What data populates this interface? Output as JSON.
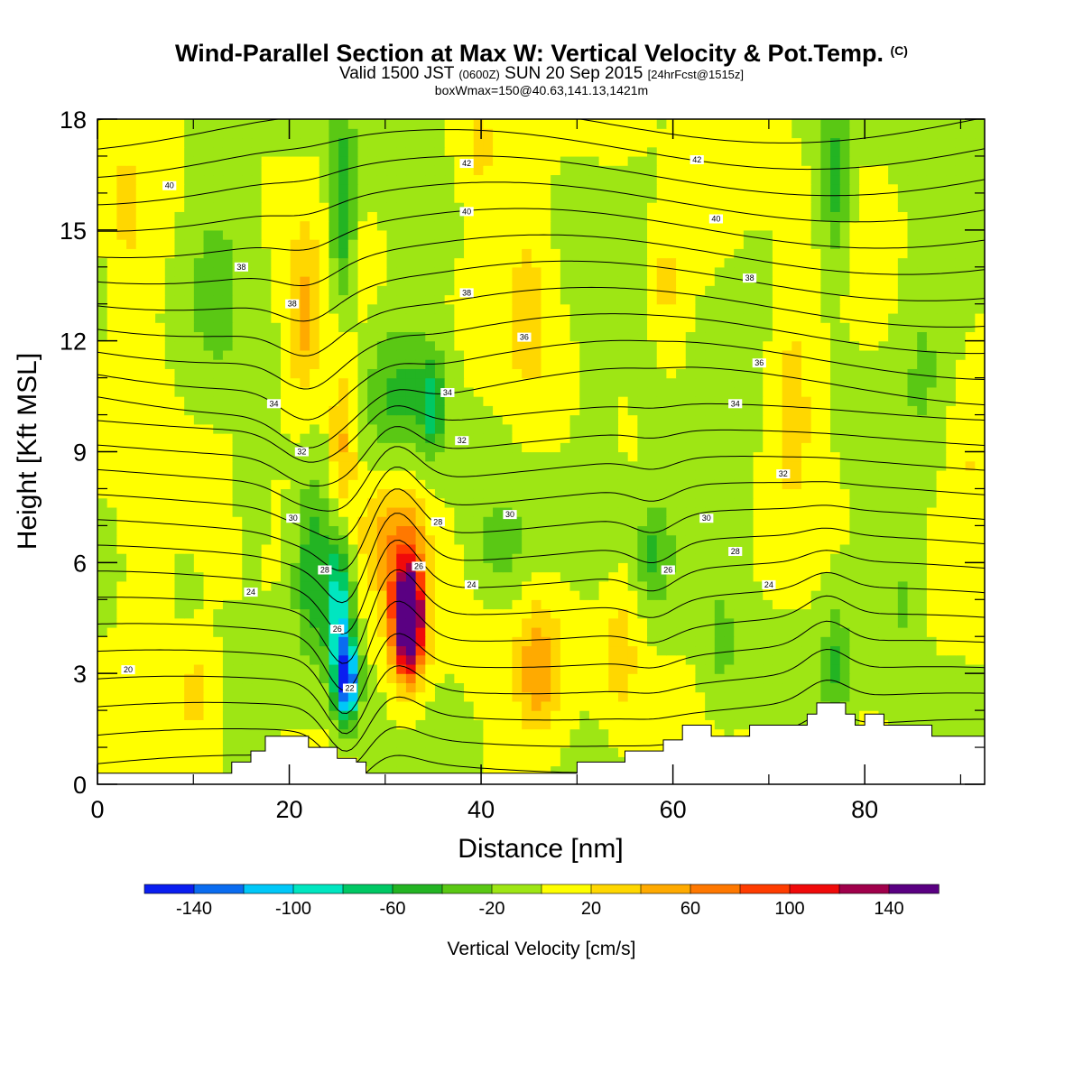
{
  "header": {
    "title": "Wind-Parallel Section at Max W: Vertical Velocity & Pot.Temp.",
    "copyright": "(C)",
    "valid_prefix": "Valid 1500 JST",
    "valid_utc": "(0600Z)",
    "valid_date": "SUN 20 Sep 2015",
    "forecast": "[24hrFcst@1515z]",
    "box_info": "boxWmax=150@40.63,141.13,1421m"
  },
  "chart_data": {
    "type": "heatmap",
    "xlabel": "Distance [nm]",
    "ylabel": "Height [Kft MSL]",
    "xlim": [
      0,
      92.5
    ],
    "ylim": [
      0,
      18
    ],
    "xticks": [
      0,
      20,
      40,
      60,
      80
    ],
    "yticks": [
      0,
      3,
      6,
      9,
      12,
      15,
      18
    ],
    "colorbar": {
      "title": "Vertical Velocity [cm/s]",
      "levels": [
        -160,
        -140,
        -120,
        -100,
        -80,
        -60,
        -40,
        -20,
        0,
        20,
        40,
        60,
        80,
        100,
        120,
        140,
        160
      ],
      "colors": [
        "#0a1ef0",
        "#0a6cf0",
        "#00c8f8",
        "#00e6c0",
        "#00c864",
        "#23b423",
        "#5ac814",
        "#9ee614",
        "#ffff00",
        "#ffd700",
        "#ffaa00",
        "#ff7800",
        "#ff3c00",
        "#f00a0a",
        "#a0004b",
        "#5a0082"
      ],
      "tick_labels": [
        "-140",
        "-100",
        "-60",
        "-20",
        "20",
        "60",
        "100",
        "140"
      ],
      "tick_values": [
        -140,
        -100,
        -60,
        -20,
        20,
        60,
        100,
        140
      ]
    },
    "background_value": 0,
    "w_features": [
      {
        "x": 26,
        "y": 2.8,
        "sx": 1.2,
        "sy": 1.1,
        "v": -145
      },
      {
        "x": 25.2,
        "y": 4.8,
        "sx": 1.3,
        "sy": 1.9,
        "v": -95
      },
      {
        "x": 22.5,
        "y": 5.8,
        "sx": 1.9,
        "sy": 2.3,
        "v": -55
      },
      {
        "x": 32.5,
        "y": 4.3,
        "sx": 1.4,
        "sy": 1.3,
        "v": 150
      },
      {
        "x": 32.2,
        "y": 5.2,
        "sx": 2.1,
        "sy": 2.4,
        "v": 85
      },
      {
        "x": 29.2,
        "y": 6.8,
        "sx": 2.1,
        "sy": 1.5,
        "v": 35
      },
      {
        "x": 25.6,
        "y": 9.3,
        "sx": 1.4,
        "sy": 2.3,
        "v": 50
      },
      {
        "x": 21.5,
        "y": 12.4,
        "sx": 1.8,
        "sy": 2.3,
        "v": 45
      },
      {
        "x": 25.5,
        "y": 15.5,
        "sx": 1.3,
        "sy": 2.6,
        "v": -65
      },
      {
        "x": 32,
        "y": 10.6,
        "sx": 3.8,
        "sy": 1.9,
        "v": -45
      },
      {
        "x": 35,
        "y": 10.2,
        "sx": 1.1,
        "sy": 1.2,
        "v": -55
      },
      {
        "x": 46,
        "y": 3.2,
        "sx": 2.2,
        "sy": 1.7,
        "v": 55
      },
      {
        "x": 54.5,
        "y": 3.6,
        "sx": 1.8,
        "sy": 1.7,
        "v": 32
      },
      {
        "x": 58,
        "y": 6.3,
        "sx": 1.7,
        "sy": 1.3,
        "v": -38
      },
      {
        "x": 77,
        "y": 3.2,
        "sx": 1.4,
        "sy": 1.8,
        "v": -38
      },
      {
        "x": 10.5,
        "y": 2.6,
        "sx": 1.9,
        "sy": 1.5,
        "v": 28
      },
      {
        "x": 58.5,
        "y": 13,
        "sx": 2.8,
        "sy": 4,
        "v": -22
      },
      {
        "x": 59,
        "y": 13.5,
        "sx": 2.1,
        "sy": 2.2,
        "v": 45
      },
      {
        "x": 77,
        "y": 16.3,
        "sx": 1.6,
        "sy": 2.2,
        "v": -52
      },
      {
        "x": 72.5,
        "y": 11,
        "sx": 2.6,
        "sy": 2.8,
        "v": 33
      },
      {
        "x": 40,
        "y": 17.2,
        "sx": 2.6,
        "sy": 1.4,
        "v": 28
      },
      {
        "x": 12,
        "y": 14,
        "sx": 3.2,
        "sy": 3.2,
        "v": -22
      },
      {
        "x": 5,
        "y": 6,
        "sx": 2.8,
        "sy": 4,
        "v": 20
      },
      {
        "x": 66,
        "y": 9.5,
        "sx": 3.2,
        "sy": 2.5,
        "v": -22
      },
      {
        "x": 45,
        "y": 13,
        "sx": 2.5,
        "sy": 3.2,
        "v": 22
      },
      {
        "x": 86,
        "y": 12,
        "sx": 2.8,
        "sy": 3.5,
        "v": -22
      },
      {
        "x": 52,
        "y": 8,
        "sx": 2.5,
        "sy": 2.5,
        "v": -20
      },
      {
        "x": 84,
        "y": 5,
        "sx": 2,
        "sy": 2,
        "v": -22
      },
      {
        "x": 16,
        "y": 8,
        "sx": 2,
        "sy": 2,
        "v": -22
      },
      {
        "x": 90.5,
        "y": 9,
        "sx": 2,
        "sy": 2,
        "v": 22
      },
      {
        "x": 3,
        "y": 15.5,
        "sx": 2,
        "sy": 2,
        "v": 22
      },
      {
        "x": 65,
        "y": 3.5,
        "sx": 2,
        "sy": 2,
        "v": -22
      },
      {
        "x": 42,
        "y": 6.5,
        "sx": 2.5,
        "sy": 1.2,
        "v": -22
      }
    ],
    "isentropes": {
      "unit": "theta label",
      "labels": [
        {
          "text": "20",
          "x": 3.2,
          "y": 3.1
        },
        {
          "text": "24",
          "x": 16,
          "y": 5.2
        },
        {
          "text": "28",
          "x": 23.7,
          "y": 5.8
        },
        {
          "text": "30",
          "x": 20.4,
          "y": 7.2
        },
        {
          "text": "32",
          "x": 21.3,
          "y": 9.0
        },
        {
          "text": "34",
          "x": 18.4,
          "y": 10.3
        },
        {
          "text": "38",
          "x": 20.3,
          "y": 13.0
        },
        {
          "text": "38",
          "x": 15,
          "y": 14.0
        },
        {
          "text": "40",
          "x": 7.5,
          "y": 16.2
        },
        {
          "text": "42",
          "x": 38.5,
          "y": 16.8
        },
        {
          "text": "40",
          "x": 38.5,
          "y": 15.5
        },
        {
          "text": "38",
          "x": 38.5,
          "y": 13.3
        },
        {
          "text": "36",
          "x": 44.5,
          "y": 12.1
        },
        {
          "text": "34",
          "x": 36.5,
          "y": 10.6
        },
        {
          "text": "32",
          "x": 38,
          "y": 9.3
        },
        {
          "text": "30",
          "x": 43,
          "y": 7.3
        },
        {
          "text": "28",
          "x": 35.5,
          "y": 7.1
        },
        {
          "text": "26",
          "x": 33.5,
          "y": 5.9
        },
        {
          "text": "24",
          "x": 39,
          "y": 5.4
        },
        {
          "text": "26",
          "x": 25,
          "y": 4.2
        },
        {
          "text": "22",
          "x": 26.3,
          "y": 2.6
        },
        {
          "text": "42",
          "x": 62.5,
          "y": 16.9
        },
        {
          "text": "40",
          "x": 64.5,
          "y": 15.3
        },
        {
          "text": "38",
          "x": 68,
          "y": 13.7
        },
        {
          "text": "36",
          "x": 69,
          "y": 11.4
        },
        {
          "text": "34",
          "x": 66.5,
          "y": 10.3
        },
        {
          "text": "32",
          "x": 71.5,
          "y": 8.4
        },
        {
          "text": "30",
          "x": 63.5,
          "y": 7.2
        },
        {
          "text": "28",
          "x": 66.5,
          "y": 6.3
        },
        {
          "text": "26",
          "x": 59.5,
          "y": 5.8
        },
        {
          "text": "24",
          "x": 70,
          "y": 5.4
        }
      ]
    },
    "terrain": [
      [
        0,
        0.3
      ],
      [
        14,
        0.3
      ],
      [
        14,
        0.6
      ],
      [
        16,
        0.6
      ],
      [
        16,
        0.9
      ],
      [
        17.5,
        0.9
      ],
      [
        17.5,
        1.3
      ],
      [
        22,
        1.3
      ],
      [
        22,
        1.0
      ],
      [
        25,
        1.0
      ],
      [
        25,
        0.7
      ],
      [
        27,
        0.7
      ],
      [
        27,
        0.6
      ],
      [
        28,
        0.6
      ],
      [
        28,
        0.3
      ],
      [
        50,
        0.3
      ],
      [
        50,
        0.6
      ],
      [
        55,
        0.6
      ],
      [
        55,
        0.9
      ],
      [
        59,
        0.9
      ],
      [
        59,
        1.2
      ],
      [
        61,
        1.2
      ],
      [
        61,
        1.6
      ],
      [
        64,
        1.6
      ],
      [
        64,
        1.3
      ],
      [
        68,
        1.3
      ],
      [
        68,
        1.6
      ],
      [
        74,
        1.6
      ],
      [
        74,
        1.9
      ],
      [
        75,
        1.9
      ],
      [
        75,
        2.2
      ],
      [
        78,
        2.2
      ],
      [
        78,
        1.9
      ],
      [
        79,
        1.9
      ],
      [
        79,
        1.6
      ],
      [
        80,
        1.6
      ],
      [
        80,
        1.9
      ],
      [
        82,
        1.9
      ],
      [
        82,
        1.6
      ],
      [
        87,
        1.6
      ],
      [
        87,
        1.3
      ],
      [
        92.5,
        1.3
      ]
    ]
  }
}
